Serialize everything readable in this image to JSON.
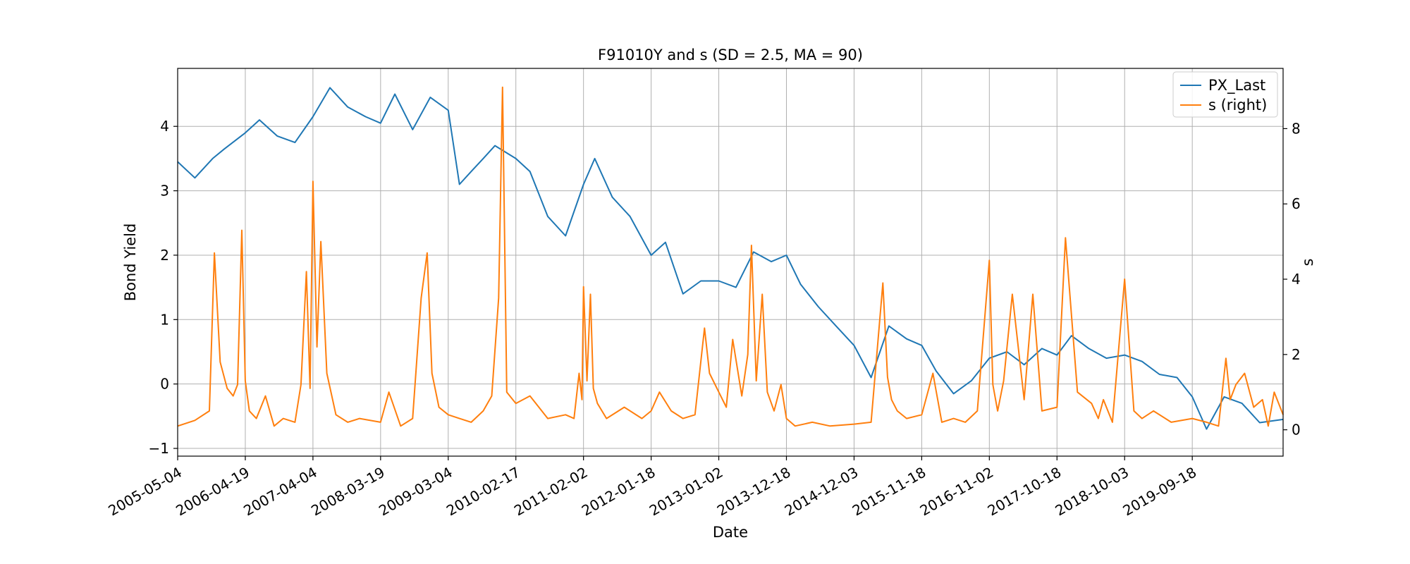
{
  "chart_data": {
    "type": "line",
    "title": "F91010Y and s (SD = 2.5, MA = 90)",
    "xlabel": "Date",
    "ylabel": "Bond Yield",
    "ylabel_right": "s",
    "x_range": [
      "2005-05-04",
      "2020-12-31"
    ],
    "ylim": [
      -1.12,
      4.9
    ],
    "ylim_right": [
      -0.7,
      9.6
    ],
    "x_tick_labels": [
      "2005-05-04",
      "2006-04-19",
      "2007-04-04",
      "2008-03-19",
      "2009-03-04",
      "2010-02-17",
      "2011-02-02",
      "2012-01-18",
      "2013-01-02",
      "2013-12-18",
      "2014-12-03",
      "2015-11-18",
      "2016-11-02",
      "2017-10-18",
      "2018-10-03",
      "2019-09-18"
    ],
    "y_ticks": [
      -1,
      0,
      1,
      2,
      3,
      4
    ],
    "y_ticks_right": [
      0,
      2,
      4,
      6,
      8
    ],
    "grid": true,
    "legend": {
      "position": "top-right",
      "entries": [
        "PX_Last",
        "s (right)"
      ]
    },
    "colors": {
      "PX_Last": "#1f77b4",
      "s (right)": "#ff7f0e"
    },
    "series": [
      {
        "name": "PX_Last",
        "axis": "left",
        "x": [
          "2005-05-04",
          "2005-08-01",
          "2005-11-01",
          "2006-01-01",
          "2006-04-19",
          "2006-07-01",
          "2006-10-01",
          "2007-01-01",
          "2007-04-04",
          "2007-07-01",
          "2007-10-01",
          "2008-01-01",
          "2008-03-19",
          "2008-06-01",
          "2008-09-01",
          "2008-12-01",
          "2009-03-04",
          "2009-05-01",
          "2009-07-01",
          "2009-09-01",
          "2009-11-01",
          "2010-02-17",
          "2010-05-01",
          "2010-08-01",
          "2010-11-01",
          "2011-02-02",
          "2011-04-01",
          "2011-07-01",
          "2011-10-01",
          "2012-01-18",
          "2012-04-01",
          "2012-07-01",
          "2012-10-01",
          "2013-01-02",
          "2013-04-01",
          "2013-07-01",
          "2013-10-01",
          "2013-12-18",
          "2014-03-01",
          "2014-06-01",
          "2014-09-01",
          "2014-12-03",
          "2015-03-01",
          "2015-06-01",
          "2015-09-01",
          "2015-11-18",
          "2016-02-01",
          "2016-05-01",
          "2016-08-01",
          "2016-11-02",
          "2017-02-01",
          "2017-05-01",
          "2017-08-01",
          "2017-10-18",
          "2018-01-01",
          "2018-04-01",
          "2018-07-01",
          "2018-10-03",
          "2019-01-01",
          "2019-04-01",
          "2019-07-01",
          "2019-09-18",
          "2019-12-01",
          "2020-03-01",
          "2020-06-01",
          "2020-09-01",
          "2020-12-31"
        ],
        "y": [
          3.45,
          3.2,
          3.5,
          3.65,
          3.9,
          4.1,
          3.85,
          3.75,
          4.15,
          4.6,
          4.3,
          4.15,
          4.05,
          4.5,
          3.95,
          4.45,
          4.25,
          3.1,
          3.3,
          3.5,
          3.7,
          3.5,
          3.3,
          2.6,
          2.3,
          3.1,
          3.5,
          2.9,
          2.6,
          2.0,
          2.2,
          1.4,
          1.6,
          1.6,
          1.5,
          2.05,
          1.9,
          2.0,
          1.55,
          1.2,
          0.9,
          0.6,
          0.1,
          0.9,
          0.7,
          0.6,
          0.2,
          -0.15,
          0.05,
          0.4,
          0.5,
          0.3,
          0.55,
          0.45,
          0.75,
          0.55,
          0.4,
          0.45,
          0.35,
          0.15,
          0.1,
          -0.2,
          -0.7,
          -0.2,
          -0.3,
          -0.6,
          -0.55
        ]
      },
      {
        "name": "s (right)",
        "axis": "right",
        "x": [
          "2005-05-04",
          "2005-08-01",
          "2005-10-15",
          "2005-11-10",
          "2005-12-10",
          "2006-01-15",
          "2006-02-15",
          "2006-03-10",
          "2006-04-01",
          "2006-04-19",
          "2006-05-10",
          "2006-06-15",
          "2006-08-01",
          "2006-09-15",
          "2006-11-01",
          "2007-01-01",
          "2007-02-01",
          "2007-03-01",
          "2007-03-20",
          "2007-04-04",
          "2007-04-25",
          "2007-05-15",
          "2007-06-15",
          "2007-08-01",
          "2007-10-01",
          "2007-12-01",
          "2008-03-19",
          "2008-05-01",
          "2008-07-01",
          "2008-09-01",
          "2008-10-15",
          "2008-11-15",
          "2008-12-10",
          "2009-01-15",
          "2009-03-04",
          "2009-05-01",
          "2009-07-01",
          "2009-09-01",
          "2009-10-15",
          "2009-11-20",
          "2009-12-10",
          "2010-01-01",
          "2010-02-17",
          "2010-05-01",
          "2010-08-01",
          "2010-11-01",
          "2010-12-15",
          "2011-01-10",
          "2011-01-25",
          "2011-02-02",
          "2011-02-20",
          "2011-03-10",
          "2011-03-25",
          "2011-04-15",
          "2011-06-01",
          "2011-09-01",
          "2011-12-01",
          "2012-01-18",
          "2012-03-01",
          "2012-05-01",
          "2012-07-01",
          "2012-09-01",
          "2012-10-20",
          "2012-11-15",
          "2013-01-02",
          "2013-02-10",
          "2013-03-15",
          "2013-05-01",
          "2013-06-01",
          "2013-06-20",
          "2013-07-15",
          "2013-08-15",
          "2013-09-10",
          "2013-10-15",
          "2013-11-20",
          "2013-12-18",
          "2014-02-01",
          "2014-05-01",
          "2014-08-01",
          "2014-12-03",
          "2015-03-01",
          "2015-05-01",
          "2015-05-25",
          "2015-06-15",
          "2015-07-15",
          "2015-09-01",
          "2015-11-18",
          "2016-01-15",
          "2016-03-01",
          "2016-05-01",
          "2016-07-01",
          "2016-09-01",
          "2016-11-02",
          "2016-11-20",
          "2016-12-15",
          "2017-01-15",
          "2017-03-01",
          "2017-05-01",
          "2017-06-15",
          "2017-08-01",
          "2017-10-18",
          "2017-12-01",
          "2018-02-01",
          "2018-04-15",
          "2018-05-20",
          "2018-06-15",
          "2018-08-01",
          "2018-10-03",
          "2018-11-20",
          "2019-01-01",
          "2019-03-01",
          "2019-06-01",
          "2019-09-18",
          "2019-12-01",
          "2020-02-01",
          "2020-03-10",
          "2020-04-01",
          "2020-05-01",
          "2020-06-15",
          "2020-08-01",
          "2020-09-15",
          "2020-10-15",
          "2020-11-15",
          "2020-12-31"
        ],
        "y": [
          0.1,
          0.25,
          0.5,
          4.7,
          1.8,
          1.1,
          0.9,
          1.2,
          5.3,
          1.3,
          0.5,
          0.3,
          0.9,
          0.1,
          0.3,
          0.2,
          1.2,
          4.2,
          1.1,
          6.6,
          2.2,
          5.0,
          1.5,
          0.4,
          0.2,
          0.3,
          0.2,
          1.0,
          0.1,
          0.3,
          3.5,
          4.7,
          1.5,
          0.6,
          0.4,
          0.3,
          0.2,
          0.5,
          0.9,
          3.5,
          9.1,
          1.0,
          0.7,
          0.9,
          0.3,
          0.4,
          0.3,
          1.5,
          0.8,
          3.8,
          1.3,
          3.6,
          1.1,
          0.7,
          0.3,
          0.6,
          0.3,
          0.5,
          1.0,
          0.5,
          0.3,
          0.4,
          2.7,
          1.5,
          1.0,
          0.6,
          2.4,
          0.9,
          2.0,
          4.9,
          1.3,
          3.6,
          1.0,
          0.5,
          1.2,
          0.3,
          0.1,
          0.2,
          0.1,
          0.15,
          0.2,
          3.9,
          1.4,
          0.8,
          0.5,
          0.3,
          0.4,
          1.5,
          0.2,
          0.3,
          0.2,
          0.5,
          4.5,
          1.2,
          0.5,
          1.3,
          3.6,
          0.8,
          3.6,
          0.5,
          0.6,
          5.1,
          1.0,
          0.7,
          0.3,
          0.8,
          0.2,
          4.0,
          0.5,
          0.3,
          0.5,
          0.2,
          0.3,
          0.2,
          0.1,
          1.9,
          0.8,
          1.2,
          1.5,
          0.6,
          0.8,
          0.1,
          1.0,
          0.4
        ]
      }
    ]
  }
}
